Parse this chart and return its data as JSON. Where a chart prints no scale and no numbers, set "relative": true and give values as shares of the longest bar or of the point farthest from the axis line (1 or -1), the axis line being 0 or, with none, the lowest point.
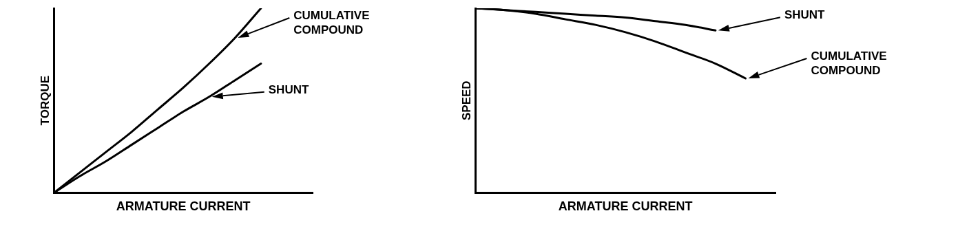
{
  "chart_data": [
    {
      "type": "line",
      "relative": true,
      "ylabel": "TORQUE",
      "xlabel": "ARMATURE CURRENT",
      "legend": "top right",
      "marker": "none",
      "grid": false,
      "line_style": "solid",
      "categories": [
        null,
        null,
        null,
        null,
        null,
        null,
        null,
        null,
        null,
        null,
        null
      ],
      "series": [
        {
          "name": "CUMULATIVE COMPOUND",
          "color": "#000000",
          "values": [
            0,
            0.11,
            0.22,
            0.33,
            0.45,
            0.57,
            0.7,
            0.84,
            1,
            null,
            null
          ]
        },
        {
          "name": "SHUNT",
          "color": "#000000",
          "values": [
            0,
            0.09,
            0.17,
            0.26,
            0.35,
            0.44,
            0.52,
            0.61,
            0.7,
            null,
            null
          ]
        }
      ]
    },
    {
      "type": "line",
      "relative": true,
      "ylabel": "SPEED",
      "xlabel": "ARMATURE CURRENT",
      "legend": "top right",
      "marker": "none",
      "grid": false,
      "line_style": "solid",
      "categories": [
        null,
        null,
        null,
        null,
        null,
        null,
        null,
        null,
        null,
        null,
        null
      ],
      "series": [
        {
          "name": "SHUNT",
          "color": "#000000",
          "values": [
            1,
            0.99,
            0.98,
            0.97,
            0.96,
            0.95,
            0.93,
            0.91,
            0.88,
            null,
            null
          ]
        },
        {
          "name": "CUMULATIVE COMPOUND",
          "color": "#000000",
          "values": [
            1,
            0.99,
            0.97,
            0.94,
            0.91,
            0.87,
            0.82,
            0.76,
            0.7,
            0.62,
            null
          ]
        }
      ]
    }
  ]
}
